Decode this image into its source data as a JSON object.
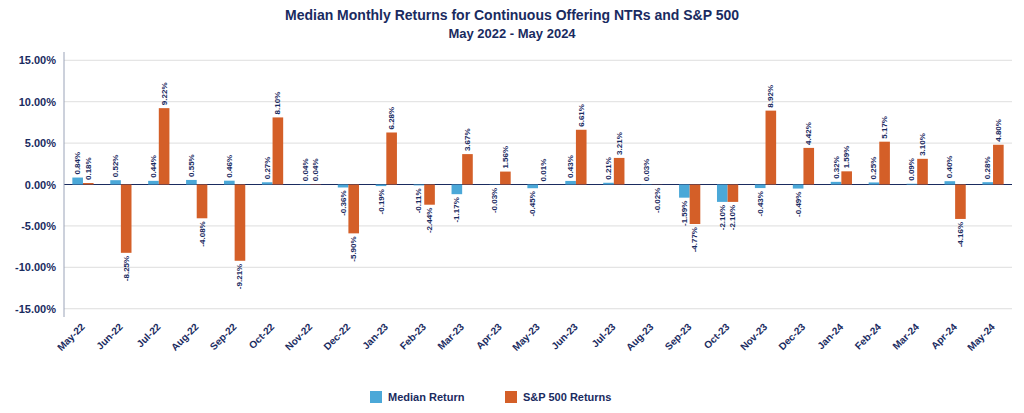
{
  "chart_data": {
    "type": "bar",
    "title": "Median Monthly Returns for Continuous Offering NTRs and S&P 500",
    "subtitle": "May 2022 - May 2024",
    "categories": [
      "May-22",
      "Jun-22",
      "Jul-22",
      "Aug-22",
      "Sep-22",
      "Oct-22",
      "Nov-22",
      "Dec-22",
      "Jan-23",
      "Feb-23",
      "Mar-23",
      "Apr-23",
      "May-23",
      "Jun-23",
      "Jul-23",
      "Aug-23",
      "Sep-23",
      "Oct-23",
      "Nov-23",
      "Dec-23",
      "Jan-24",
      "Feb-24",
      "Mar-24",
      "Apr-24",
      "May-24"
    ],
    "series": [
      {
        "name": "Median Return",
        "color": "#4ba8d8",
        "values": [
          0.84,
          0.52,
          0.44,
          0.55,
          0.46,
          0.27,
          0.04,
          -0.36,
          -0.19,
          -0.11,
          -1.17,
          -0.03,
          -0.45,
          0.43,
          0.21,
          0.03,
          -1.59,
          -2.1,
          -0.43,
          -0.49,
          0.32,
          0.25,
          0.09,
          0.4,
          0.28
        ],
        "value_labels": [
          "0.84%",
          "0.52%",
          "0.44%",
          "0.55%",
          "0.46%",
          "0.27%",
          "0.04%",
          "-0.36%",
          "-0.19%",
          "-0.11%",
          "-1.17%",
          "-0.03%",
          "-0.45%",
          "0.43%",
          "0.21%",
          "0.03%",
          "-1.59%",
          "-2.10%",
          "-0.43%",
          "-0.49%",
          "0.32%",
          "0.25%",
          "0.09%",
          "0.40%",
          "0.28%"
        ]
      },
      {
        "name": "S&P 500 Returns",
        "color": "#d45f28",
        "values": [
          0.18,
          -8.25,
          9.22,
          -4.08,
          -9.21,
          8.1,
          0.04,
          -5.9,
          6.28,
          -2.44,
          3.67,
          1.56,
          0.01,
          6.61,
          3.21,
          -0.02,
          -4.77,
          -2.1,
          8.92,
          4.42,
          1.59,
          5.17,
          3.1,
          -4.16,
          4.8
        ],
        "value_labels": [
          "0.18%",
          "-8.25%",
          "9.22%",
          "-4.08%",
          "-9.21%",
          "8.10%",
          "0.04%",
          "-5.90%",
          "6.28%",
          "-2.44%",
          "3.67%",
          "1.56%",
          "0.01%",
          "6.61%",
          "3.21%",
          "-0.02%",
          "-4.77%",
          "-2.10%",
          "8.92%",
          "4.42%",
          "1.59%",
          "5.17%",
          "3.10%",
          "-4.16%",
          "4.80%"
        ]
      }
    ],
    "ylim": [
      -16,
      16
    ],
    "yticks": [
      {
        "value": -15,
        "label": "-15.00%"
      },
      {
        "value": -10,
        "label": "-10.00%"
      },
      {
        "value": -5,
        "label": "-5.00%"
      },
      {
        "value": 0,
        "label": "0.00%"
      },
      {
        "value": 5,
        "label": "5.00%"
      },
      {
        "value": 10,
        "label": "10.00%"
      },
      {
        "value": 15,
        "label": "15.00%"
      }
    ],
    "grid": true,
    "legend": "bottom",
    "data_labels": true
  }
}
